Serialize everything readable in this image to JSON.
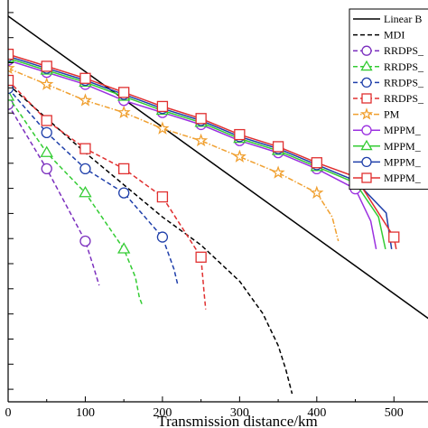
{
  "chart_data": {
    "type": "line",
    "xlabel": "Transmission distance/km",
    "ylabel": "",
    "x_ticks": [
      0,
      100,
      200,
      300,
      400,
      500
    ],
    "xlim": [
      0,
      550
    ],
    "ylim": [
      0,
      1
    ],
    "y_tick_count": 16,
    "grid": false,
    "legend_position": "top-right",
    "series": [
      {
        "name": "Linear B",
        "color": "#000000",
        "style": "solid",
        "marker": "none",
        "points": [
          [
            0,
            0.96
          ],
          [
            550,
            0.2
          ]
        ]
      },
      {
        "name": "MDI",
        "color": "#000000",
        "style": "dashed",
        "marker": "none",
        "points": [
          [
            0,
            0.79
          ],
          [
            100,
            0.62
          ],
          [
            200,
            0.46
          ],
          [
            250,
            0.39
          ],
          [
            300,
            0.3
          ],
          [
            330,
            0.22
          ],
          [
            350,
            0.14
          ],
          [
            360,
            0.08
          ],
          [
            368,
            0.02
          ]
        ]
      },
      {
        "name": "RRDPS_",
        "color": "#7B2FBE",
        "style": "dashed",
        "marker": "circle",
        "points": [
          [
            0,
            0.74
          ],
          [
            50,
            0.58
          ],
          [
            100,
            0.4
          ],
          [
            110,
            0.34
          ],
          [
            118,
            0.29
          ]
        ]
      },
      {
        "name": "RRDPS_",
        "color": "#33CC33",
        "style": "dashed",
        "marker": "triangle",
        "points": [
          [
            0,
            0.76
          ],
          [
            50,
            0.62
          ],
          [
            100,
            0.52
          ],
          [
            150,
            0.38
          ],
          [
            165,
            0.31
          ],
          [
            170,
            0.26
          ],
          [
            174,
            0.24
          ]
        ]
      },
      {
        "name": "RRDPS_",
        "color": "#1F3FAA",
        "style": "dashed",
        "marker": "circle",
        "points": [
          [
            0,
            0.78
          ],
          [
            50,
            0.67
          ],
          [
            100,
            0.58
          ],
          [
            150,
            0.52
          ],
          [
            200,
            0.41
          ],
          [
            215,
            0.33
          ],
          [
            220,
            0.29
          ]
        ]
      },
      {
        "name": "RRDPS_",
        "color": "#E03030",
        "style": "dashed",
        "marker": "square",
        "points": [
          [
            0,
            0.8
          ],
          [
            50,
            0.7
          ],
          [
            100,
            0.63
          ],
          [
            150,
            0.58
          ],
          [
            200,
            0.51
          ],
          [
            250,
            0.36
          ],
          [
            254,
            0.27
          ],
          [
            256,
            0.23
          ]
        ]
      },
      {
        "name": "PM",
        "color": "#F0A030",
        "style": "dashdot",
        "marker": "star",
        "points": [
          [
            0,
            0.83
          ],
          [
            50,
            0.79
          ],
          [
            100,
            0.75
          ],
          [
            150,
            0.72
          ],
          [
            200,
            0.68
          ],
          [
            250,
            0.65
          ],
          [
            300,
            0.61
          ],
          [
            350,
            0.57
          ],
          [
            400,
            0.52
          ],
          [
            420,
            0.46
          ],
          [
            428,
            0.4
          ]
        ]
      },
      {
        "name": "MPPM_",
        "color": "#9B30E0",
        "style": "solid",
        "marker": "circle",
        "points": [
          [
            0,
            0.85
          ],
          [
            50,
            0.82
          ],
          [
            100,
            0.79
          ],
          [
            150,
            0.75
          ],
          [
            200,
            0.72
          ],
          [
            250,
            0.69
          ],
          [
            300,
            0.65
          ],
          [
            350,
            0.62
          ],
          [
            400,
            0.58
          ],
          [
            450,
            0.53
          ],
          [
            470,
            0.45
          ],
          [
            477,
            0.38
          ]
        ]
      },
      {
        "name": "MPPM_",
        "color": "#33CC33",
        "style": "solid",
        "marker": "triangle",
        "points": [
          [
            0,
            0.855
          ],
          [
            50,
            0.825
          ],
          [
            100,
            0.795
          ],
          [
            150,
            0.76
          ],
          [
            200,
            0.725
          ],
          [
            250,
            0.695
          ],
          [
            300,
            0.655
          ],
          [
            350,
            0.625
          ],
          [
            400,
            0.585
          ],
          [
            450,
            0.545
          ],
          [
            480,
            0.46
          ],
          [
            489,
            0.38
          ]
        ]
      },
      {
        "name": "MPPM_",
        "color": "#1F3FAA",
        "style": "solid",
        "marker": "circle",
        "points": [
          [
            0,
            0.86
          ],
          [
            50,
            0.83
          ],
          [
            100,
            0.8
          ],
          [
            150,
            0.765
          ],
          [
            200,
            0.73
          ],
          [
            250,
            0.7
          ],
          [
            300,
            0.66
          ],
          [
            350,
            0.63
          ],
          [
            400,
            0.59
          ],
          [
            450,
            0.55
          ],
          [
            490,
            0.47
          ],
          [
            497,
            0.38
          ]
        ]
      },
      {
        "name": "MPPM_",
        "color": "#E03030",
        "style": "solid",
        "marker": "square",
        "points": [
          [
            0,
            0.865
          ],
          [
            50,
            0.835
          ],
          [
            100,
            0.805
          ],
          [
            150,
            0.77
          ],
          [
            200,
            0.735
          ],
          [
            250,
            0.705
          ],
          [
            300,
            0.665
          ],
          [
            350,
            0.635
          ],
          [
            400,
            0.595
          ],
          [
            450,
            0.56
          ],
          [
            500,
            0.41
          ],
          [
            503,
            0.38
          ]
        ]
      }
    ]
  }
}
